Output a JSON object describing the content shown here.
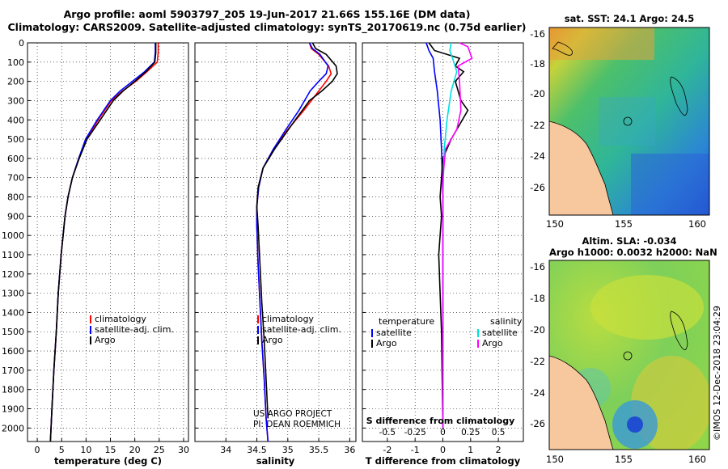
{
  "title": {
    "line1": "Argo profile: aoml 5903797_205 19-Jun-2017 21.66S 155.16E (DM data)",
    "line2": "Climatology: CARS2009. Satellite-adjusted climatology: synTS_20170619.nc (0.75d earlier)"
  },
  "colors": {
    "climatology": "#ff0000",
    "satellite": "#0000ff",
    "argo": "#000000",
    "sat_s": "#00e0e0",
    "argo_s": "#ff00ff"
  },
  "depth_ticks": [
    "0",
    "100",
    "200",
    "300",
    "400",
    "500",
    "600",
    "700",
    "800",
    "900",
    "1000",
    "1100",
    "1200",
    "1300",
    "1400",
    "1500",
    "1600",
    "1700",
    "1800",
    "1900",
    "2000"
  ],
  "depth_range": [
    0,
    2070
  ],
  "chart_data": [
    {
      "type": "line",
      "name": "temperature-panel",
      "xlabel": "temperature (deg C)",
      "xlim": [
        -2,
        31
      ],
      "x_ticks": [
        "0",
        "5",
        "10",
        "15",
        "20",
        "25",
        "30"
      ],
      "series": [
        {
          "name": "climatology",
          "color": "#ff0000",
          "x": [
            24.8,
            24.8,
            24.6,
            22.5,
            20.2,
            17.5,
            15.2,
            12.5,
            10.0,
            8.5,
            7.2,
            6.3,
            5.7,
            4.9,
            4.3,
            3.9,
            3.4,
            3.0,
            2.7
          ],
          "y": [
            0,
            50,
            100,
            150,
            200,
            250,
            300,
            400,
            500,
            600,
            700,
            800,
            900,
            1100,
            1300,
            1500,
            1700,
            1900,
            2070
          ]
        },
        {
          "name": "satellite-adj. clim.",
          "color": "#0000ff",
          "x": [
            24.2,
            24.2,
            24.0,
            22.0,
            19.5,
            17.0,
            15.0,
            12.3,
            9.9,
            8.5,
            7.2,
            6.3,
            5.7,
            4.9,
            4.3,
            3.9,
            3.4,
            3.0,
            2.7
          ],
          "y": [
            0,
            50,
            100,
            150,
            200,
            250,
            300,
            400,
            500,
            600,
            700,
            800,
            900,
            1100,
            1300,
            1500,
            1700,
            1900,
            2070
          ]
        },
        {
          "name": "Argo",
          "color": "#000000",
          "x": [
            24.3,
            24.3,
            24.1,
            22.3,
            20.0,
            17.6,
            15.6,
            12.9,
            10.2,
            8.6,
            7.2,
            6.3,
            5.7,
            4.9,
            4.3,
            3.9,
            3.4,
            3.0,
            2.7
          ],
          "y": [
            0,
            50,
            100,
            150,
            200,
            250,
            300,
            400,
            500,
            600,
            700,
            800,
            900,
            1100,
            1300,
            1500,
            1700,
            1900,
            2070
          ]
        }
      ],
      "legend": [
        "climatology",
        "satellite-adj. clim.",
        "Argo"
      ]
    },
    {
      "type": "line",
      "name": "salinity-panel",
      "xlabel": "salinity",
      "xlim": [
        33.5,
        36.1
      ],
      "x_ticks": [
        "34",
        "34.5",
        "35",
        "35.5",
        "36"
      ],
      "series": [
        {
          "name": "climatology",
          "color": "#ff0000",
          "x": [
            35.35,
            35.38,
            35.5,
            35.66,
            35.7,
            35.62,
            35.5,
            35.26,
            35.0,
            34.77,
            34.6,
            34.53,
            34.5,
            34.5,
            34.52,
            34.55,
            34.58,
            34.62,
            34.65,
            34.68
          ],
          "y": [
            0,
            30,
            60,
            120,
            160,
            200,
            250,
            350,
            450,
            550,
            650,
            750,
            850,
            950,
            1150,
            1350,
            1550,
            1750,
            1950,
            2070
          ]
        },
        {
          "name": "satellite-adj. clim.",
          "color": "#0000ff",
          "x": [
            35.35,
            35.4,
            35.52,
            35.65,
            35.62,
            35.5,
            35.36,
            35.18,
            34.97,
            34.77,
            34.6,
            34.53,
            34.5,
            34.5,
            34.52,
            34.55,
            34.58,
            34.62,
            34.65,
            34.68
          ],
          "y": [
            0,
            30,
            60,
            120,
            160,
            200,
            250,
            350,
            450,
            550,
            650,
            750,
            850,
            950,
            1150,
            1350,
            1550,
            1750,
            1950,
            2070
          ]
        },
        {
          "name": "Argo",
          "color": "#000000",
          "x": [
            35.4,
            35.45,
            35.62,
            35.78,
            35.8,
            35.72,
            35.55,
            35.35,
            35.12,
            34.79,
            34.6,
            34.52,
            34.5,
            34.52,
            34.55,
            34.58,
            34.62,
            34.65,
            34.68
          ],
          "y": [
            0,
            30,
            60,
            120,
            160,
            200,
            250,
            300,
            400,
            550,
            650,
            750,
            850,
            950,
            1150,
            1350,
            1550,
            1750,
            1950
          ]
        }
      ],
      "legend": [
        "climatology",
        "satellite-adj. clim.",
        "Argo"
      ],
      "annotation": [
        "US ARGO PROJECT",
        "PI: DEAN ROEMMICH"
      ]
    },
    {
      "type": "line",
      "name": "difference-panel",
      "xlabel": "T difference from climatology",
      "xlabel_top": "S difference from climatology",
      "xlim": [
        -2.9,
        2.9
      ],
      "x_ticks": [
        "-2",
        "-1",
        "0",
        "1",
        "2"
      ],
      "top_ticks": [
        "-0.5",
        "-0.25",
        "0",
        "0.25",
        "0.5"
      ],
      "series": [
        {
          "name": "temperature satellite",
          "color": "#0000ff",
          "x": [
            -0.6,
            -0.5,
            -0.35,
            -0.3,
            -0.2,
            -0.1,
            -0.05,
            0,
            0
          ],
          "y": [
            0,
            40,
            80,
            150,
            250,
            400,
            550,
            800,
            2000
          ]
        },
        {
          "name": "temperature Argo",
          "color": "#000000",
          "x": [
            -0.5,
            -0.3,
            0.6,
            0.45,
            0.75,
            0.45,
            0.65,
            0.9,
            0.3,
            0,
            -0.1,
            -0.05,
            -0.15,
            -0.1,
            -0.05,
            0
          ],
          "y": [
            0,
            40,
            80,
            120,
            150,
            200,
            300,
            350,
            500,
            600,
            800,
            900,
            1100,
            1300,
            1500,
            2000
          ]
        },
        {
          "name": "salinity satellite",
          "color": "#00e0e0",
          "x": [
            0.3,
            0.25,
            0.35,
            0.5,
            0.3,
            0.15,
            0.05,
            0,
            0
          ],
          "y": [
            0,
            40,
            80,
            150,
            250,
            400,
            550,
            800,
            2000
          ]
        },
        {
          "name": "salinity Argo",
          "color": "#ff00ff",
          "x": [
            0.6,
            0.9,
            1.05,
            0.55,
            0.6,
            0.65,
            0.5,
            0.1,
            0,
            0
          ],
          "y": [
            0,
            20,
            80,
            120,
            200,
            350,
            450,
            550,
            700,
            2000
          ]
        }
      ],
      "legend_left_title": "temperature",
      "legend_right_title": "salinity",
      "legend_left": [
        "satellite",
        "Argo"
      ],
      "legend_right": [
        "satellite",
        "Argo"
      ]
    }
  ],
  "maps": {
    "sst": {
      "title": "sat. SST: 24.1  Argo: 24.5"
    },
    "sla": {
      "title1": "Altim. SLA: -0.034",
      "title2": "Argo h1000: 0.0032 h2000: NaN"
    },
    "lat_ticks": [
      "-16",
      "-18",
      "-20",
      "-22",
      "-24",
      "-26"
    ],
    "lon_ticks": [
      "150",
      "155",
      "160"
    ]
  },
  "watermark": "©IMOS 12-Dec-2018 23:04:29"
}
